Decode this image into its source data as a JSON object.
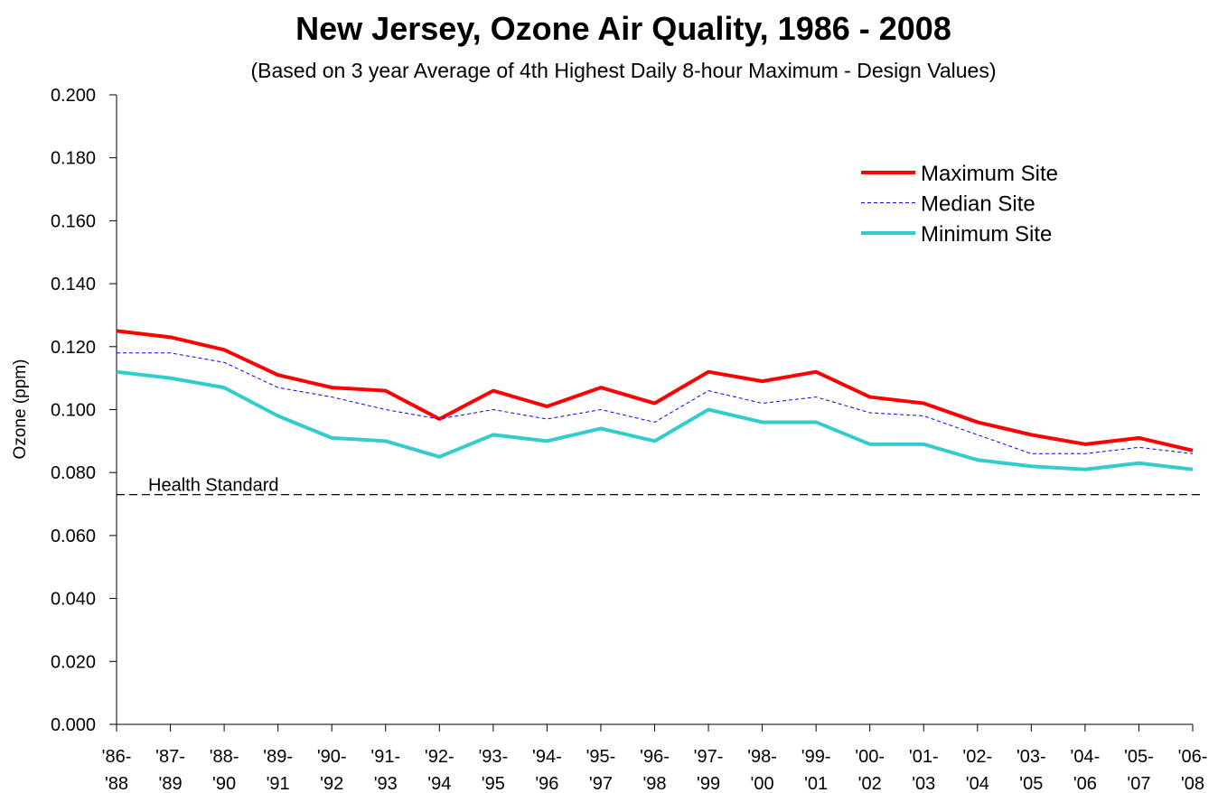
{
  "chart_data": {
    "type": "line",
    "title": "New Jersey, Ozone Air Quality, 1986 - 2008",
    "subtitle": "(Based on 3 year Average of 4th Highest Daily 8-hour Maximum - Design Values)",
    "y_label": "Ozone  (ppm)",
    "categories": [
      [
        "'86-",
        "'88"
      ],
      [
        "'87-",
        "'89"
      ],
      [
        "'88-",
        "'90"
      ],
      [
        "'89-",
        "'91"
      ],
      [
        "'90-",
        "'92"
      ],
      [
        "'91-",
        "'93"
      ],
      [
        "'92-",
        "'94"
      ],
      [
        "'93-",
        "'95"
      ],
      [
        "'94-",
        "'96"
      ],
      [
        "'95-",
        "'97"
      ],
      [
        "'96-",
        "'98"
      ],
      [
        "'97-",
        "'99"
      ],
      [
        "'98-",
        "'00"
      ],
      [
        "'99-",
        "'01"
      ],
      [
        "'00-",
        "'02"
      ],
      [
        "'01-",
        "'03"
      ],
      [
        "'02-",
        "'04"
      ],
      [
        "'03-",
        "'05"
      ],
      [
        "'04-",
        "'06"
      ],
      [
        "'05-",
        "'07"
      ],
      [
        "'06-",
        "'08"
      ]
    ],
    "series": [
      {
        "name": "Maximum Site",
        "color": "#ff0000",
        "width": 4,
        "dashed": false,
        "values": [
          0.125,
          0.123,
          0.119,
          0.111,
          0.107,
          0.106,
          0.097,
          0.106,
          0.101,
          0.107,
          0.102,
          0.112,
          0.109,
          0.112,
          0.104,
          0.102,
          0.096,
          0.092,
          0.089,
          0.091,
          0.087
        ]
      },
      {
        "name": "Median Site",
        "color": "#0000ff",
        "width": 1,
        "dashed": true,
        "values": [
          0.118,
          0.118,
          0.115,
          0.107,
          0.104,
          0.1,
          0.097,
          0.1,
          0.097,
          0.1,
          0.096,
          0.106,
          0.102,
          0.104,
          0.099,
          0.098,
          0.092,
          0.086,
          0.086,
          0.088,
          0.086
        ]
      },
      {
        "name": "Minimum Site",
        "color": "#33cccc",
        "width": 4,
        "dashed": false,
        "values": [
          0.112,
          0.11,
          0.107,
          0.098,
          0.091,
          0.09,
          0.085,
          0.092,
          0.09,
          0.094,
          0.09,
          0.1,
          0.096,
          0.096,
          0.089,
          0.089,
          0.084,
          0.082,
          0.081,
          0.083,
          0.081
        ]
      }
    ],
    "ylim": [
      0,
      0.2
    ],
    "yticks": [
      {
        "value": 0,
        "label": "0.000"
      },
      {
        "value": 0.02,
        "label": "0.020"
      },
      {
        "value": 0.04,
        "label": "0.040"
      },
      {
        "value": 0.06,
        "label": "0.060"
      },
      {
        "value": 0.08,
        "label": "0.080"
      },
      {
        "value": 0.1,
        "label": "0.100"
      },
      {
        "value": 0.12,
        "label": "0.120"
      },
      {
        "value": 0.14,
        "label": "0.140"
      },
      {
        "value": 0.16,
        "label": "0.160"
      },
      {
        "value": 0.18,
        "label": "0.180"
      },
      {
        "value": 0.2,
        "label": "0.200"
      }
    ],
    "reference_line": {
      "label": "Health Standard",
      "value": 0.073
    },
    "grid": false,
    "legend": "upper right"
  }
}
